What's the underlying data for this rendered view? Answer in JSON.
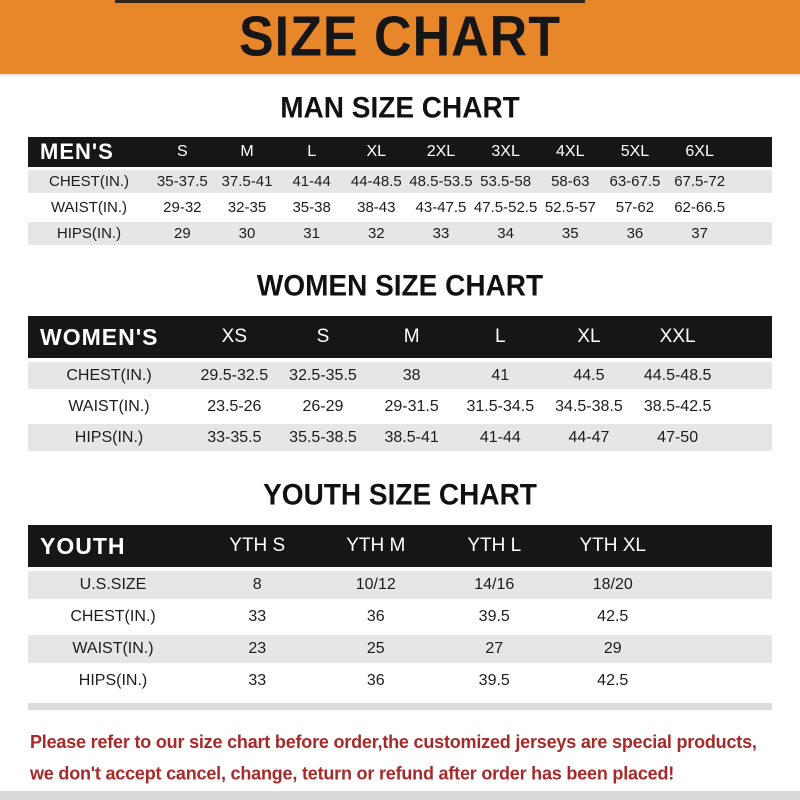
{
  "banner": {
    "title": "SIZE CHART",
    "background_color": "#E8872A",
    "text_color": "#161616"
  },
  "sections": [
    {
      "title": "MAN SIZE CHART",
      "corner": "MEN'S",
      "columns": [
        "S",
        "M",
        "L",
        "XL",
        "2XL",
        "3XL",
        "4XL",
        "5XL",
        "6XL"
      ],
      "rows": [
        {
          "label": "CHEST(IN.)",
          "values": [
            "35-37.5",
            "37.5-41",
            "41-44",
            "44-48.5",
            "48.5-53.5",
            "53.5-58",
            "58-63",
            "63-67.5",
            "67.5-72"
          ]
        },
        {
          "label": "WAIST(IN.)",
          "values": [
            "29-32",
            "32-35",
            "35-38",
            "38-43",
            "43-47.5",
            "47.5-52.5",
            "52.5-57",
            "57-62",
            "62-66.5"
          ]
        },
        {
          "label": "HIPS(IN.)",
          "values": [
            "29",
            "30",
            "31",
            "32",
            "33",
            "34",
            "35",
            "36",
            "37"
          ]
        }
      ]
    },
    {
      "title": "WOMEN SIZE CHART",
      "corner": "WOMEN'S",
      "columns": [
        "XS",
        "S",
        "M",
        "L",
        "XL",
        "XXL"
      ],
      "rows": [
        {
          "label": "CHEST(IN.)",
          "values": [
            "29.5-32.5",
            "32.5-35.5",
            "38",
            "41",
            "44.5",
            "44.5-48.5"
          ]
        },
        {
          "label": "WAIST(IN.)",
          "values": [
            "23.5-26",
            "26-29",
            "29-31.5",
            "31.5-34.5",
            "34.5-38.5",
            "38.5-42.5"
          ]
        },
        {
          "label": "HIPS(IN.)",
          "values": [
            "33-35.5",
            "35.5-38.5",
            "38.5-41",
            "41-44",
            "44-47",
            "47-50"
          ]
        }
      ]
    },
    {
      "title": "YOUTH SIZE CHART",
      "corner": "YOUTH",
      "columns": [
        "YTH S",
        "YTH M",
        "YTH L",
        "YTH XL"
      ],
      "rows": [
        {
          "label": "U.S.SIZE",
          "values": [
            "8",
            "10/12",
            "14/16",
            "18/20"
          ]
        },
        {
          "label": "CHEST(IN.)",
          "values": [
            "33",
            "36",
            "39.5",
            "42.5"
          ]
        },
        {
          "label": "WAIST(IN.)",
          "values": [
            "23",
            "25",
            "27",
            "29"
          ]
        },
        {
          "label": "HIPS(IN.)",
          "values": [
            "33",
            "36",
            "39.5",
            "42.5"
          ]
        }
      ]
    }
  ],
  "table_colors": {
    "header_background": "#161616",
    "header_text": "#FFFFFF",
    "row_alt_background": "#E6E6E6"
  },
  "footer": {
    "line1": "Please refer to our size chart before order,the customized jerseys are special products,",
    "line2": "we don't accept cancel, change, teturn or refund after order has been placed!",
    "text_color": "#A62A2A"
  }
}
